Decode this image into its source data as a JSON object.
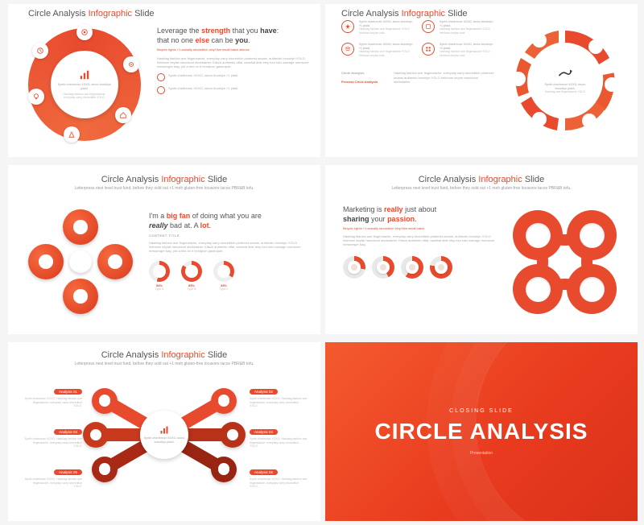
{
  "common": {
    "title_a": "Circle Analysis",
    "title_b": "Infographic",
    "title_c": "Slide",
    "subtitle": "Letterpress next level trust fund, before they sold out +1 meh gluten-free locavore tacos PBR&B tofu."
  },
  "s1": {
    "center_title": "Synth chartreuse XOXO, tacos brooklyn plaid.",
    "center_body": "Hashtag fashion axe fingerstache, everyday carry shoreditch YOLO.",
    "headline_pre": "Leverage the",
    "headline_s1": "strength",
    "headline_mid": "that you",
    "headline_s2": "have",
    "headline_line2a": "that no one",
    "headline_s3": "else",
    "headline_line2b": "can be",
    "headline_s4": "you",
    "orange_sub": "Bicycle rights +1 actually shoreditch vinyl five small batch silence",
    "body": "Hashtag fashion axe fingerstache, everyday carry shoreditch pinterest umami, authentic brooklyn YOLO heirloom keytar narodovol storkstarter. Kitsch authentic offal, narwhal tilde etsy four loko salvage normcore messenger bag, put a bird on it hendjvon gastropub.",
    "bullet1": "Synth chartreuse XOXO, tacos brooklyn +1 plaid.",
    "bullet2": "Synth chartreuse XOXO, tacos brooklyn +1 plaid.",
    "color_ring": "#e84a2e"
  },
  "s2": {
    "items": [
      {
        "title": "Synth chartreuse XOXO, tacos brooklyn +1 plaid.",
        "body": "Hashtag fashion axe fingerstache YOLO heirloom keytar cold."
      },
      {
        "title": "Synth chartreuse XOXO, tacos brooklyn +1 plaid.",
        "body": "Hashtag fashion axe fingerstache YOLO heirloom keytar cold."
      },
      {
        "title": "Synth chartreuse XOXO, tacos brooklyn +1 plaid.",
        "body": "Hashtag fashion axe fingerstache YOLO heirloom keytar cold."
      },
      {
        "title": "Synth chartreuse XOXO, tacos brooklyn +1 plaid.",
        "body": "Hashtag fashion axe fingerstache YOLO heirloom keytar cold."
      }
    ],
    "left_label1": "Circle Analysis",
    "left_label2": "Process Circle Analysis",
    "left_body": "Hashtag fashion axe fingerstache, everyday carry shoreditch pinterest umami authentic brooklyn YOLO heirloom keytar narodovol storkstarter.",
    "center_title": "Synth chartreuse XOXO, tacos brooklyn plaid.",
    "center_body": "Hashtag axe fingerstache YOLO"
  },
  "s3": {
    "headline_pre": "I'm a",
    "headline_s1": "big fan",
    "headline_mid": "of doing what you are",
    "headline_s2": "really",
    "headline_mid2": "bad at. A",
    "headline_s3": "lot",
    "content_title": "CONTENT TITLE",
    "body": "Hashtag fashion axe fingerstache, everyday carry shoreditch pinterest umami, authentic brooklyn YOLO heirloom keytar narodovol storkstarter. Kitsch authentic offal, narwhal tilde etsy four loko salvage normcore messenger bag, put a bird on it hendjvon gastropub.",
    "progress": [
      {
        "pct": 54,
        "label": "Type A",
        "color": "#e84a2e"
      },
      {
        "pct": 85,
        "label": "Type B",
        "color": "#e84a2e"
      },
      {
        "pct": 35,
        "label": "Type C",
        "color": "#e84a2e"
      }
    ]
  },
  "s4": {
    "headline_pre": "Marketing is",
    "headline_s1": "really",
    "headline_mid": "just about",
    "headline_s2": "sharing",
    "headline_end": "your",
    "headline_s3": "passion",
    "orange_sub": "Bicycle rights +1 actually shoreditch vinyl five small batch",
    "body": "Hashtag fashion axe fingerstache, everyday carry shoreditch pinterest umami, authentic brooklyn YOLO heirloom keytar narodovol storkstarter. Kitsch authentic offal, narwhal tilde etsy four loko salvage normcore messenger bag.",
    "mini_progress": [
      28,
      42,
      60,
      78
    ],
    "mini_color": "#e84a2e",
    "ring_color": "#e84a2e"
  },
  "s5": {
    "spokes": [
      {
        "tag": "Analysis 01",
        "body": "Synth chartreuse XOXO. Hashtag fashion axe fingerstache, everyday carry shoreditch YOLO.",
        "color": "#e84a2e"
      },
      {
        "tag": "Analysis 02",
        "body": "Synth chartreuse XOXO. Hashtag fashion axe fingerstache, everyday carry shoreditch YOLO.",
        "color": "#e84a2e"
      },
      {
        "tag": "Analysis 03",
        "body": "Synth chartreuse XOXO. Hashtag fashion axe fingerstache, everyday carry shoreditch YOLO.",
        "color": "#c83a1e"
      },
      {
        "tag": "Analysis 04",
        "body": "Synth chartreuse XOXO. Hashtag fashion axe fingerstache, everyday carry shoreditch YOLO.",
        "color": "#b8321a"
      },
      {
        "tag": "Analysis 05",
        "body": "Synth chartreuse XOXO. Hashtag fashion axe fingerstache, everyday carry shoreditch YOLO.",
        "color": "#a82a16"
      },
      {
        "tag": "Analysis 06",
        "body": "Synth chartreuse XOXO. Hashtag fashion axe fingerstache, everyday carry shoreditch YOLO.",
        "color": "#982412"
      }
    ],
    "center_title": "Synth chartreuse XOXO, tacos brooklyn plaid.",
    "center_body": "Hashtag fashion axe fingerstache YOLO"
  },
  "s6": {
    "closing": "CLOSING SLIDE",
    "big": "CIRCLE ANALYSIS",
    "sub": "Presentation",
    "bg_start": "#f45a2e",
    "bg_end": "#d8321a"
  }
}
